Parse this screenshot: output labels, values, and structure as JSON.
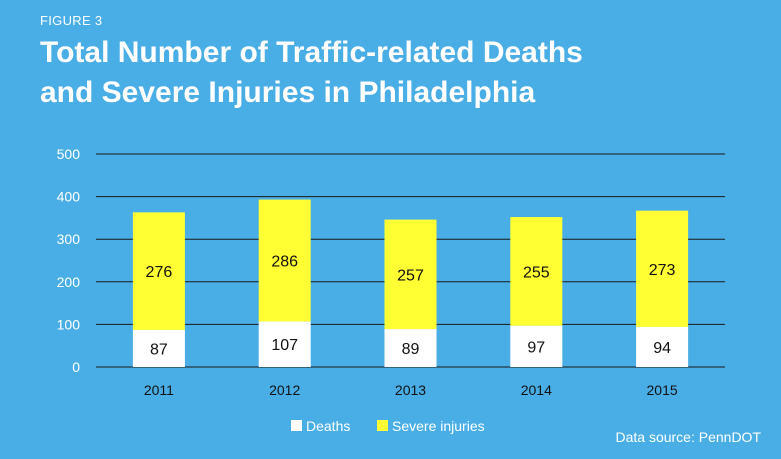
{
  "figure_label": "FIGURE 3",
  "title_line1": "Total Number of Traffic-related Deaths",
  "title_line2": "and Severe Injuries in Philadelphia",
  "source": "Data source: PennDOT",
  "colors": {
    "background": "#4aaee6",
    "deaths": "#ffffff",
    "severe_injuries": "#ffff33",
    "gridline": "#1a1a1a",
    "text": "#ffffff"
  },
  "chart_data": {
    "type": "bar",
    "stacked": true,
    "categories": [
      "2011",
      "2012",
      "2013",
      "2014",
      "2015"
    ],
    "series": [
      {
        "name": "Deaths",
        "values": [
          87,
          107,
          89,
          97,
          94
        ]
      },
      {
        "name": "Severe injuries",
        "values": [
          276,
          286,
          257,
          255,
          273
        ]
      }
    ],
    "ylim": [
      0,
      500
    ],
    "yticks": [
      0,
      100,
      200,
      300,
      400,
      500
    ],
    "grid": true,
    "legend_position": "bottom"
  }
}
